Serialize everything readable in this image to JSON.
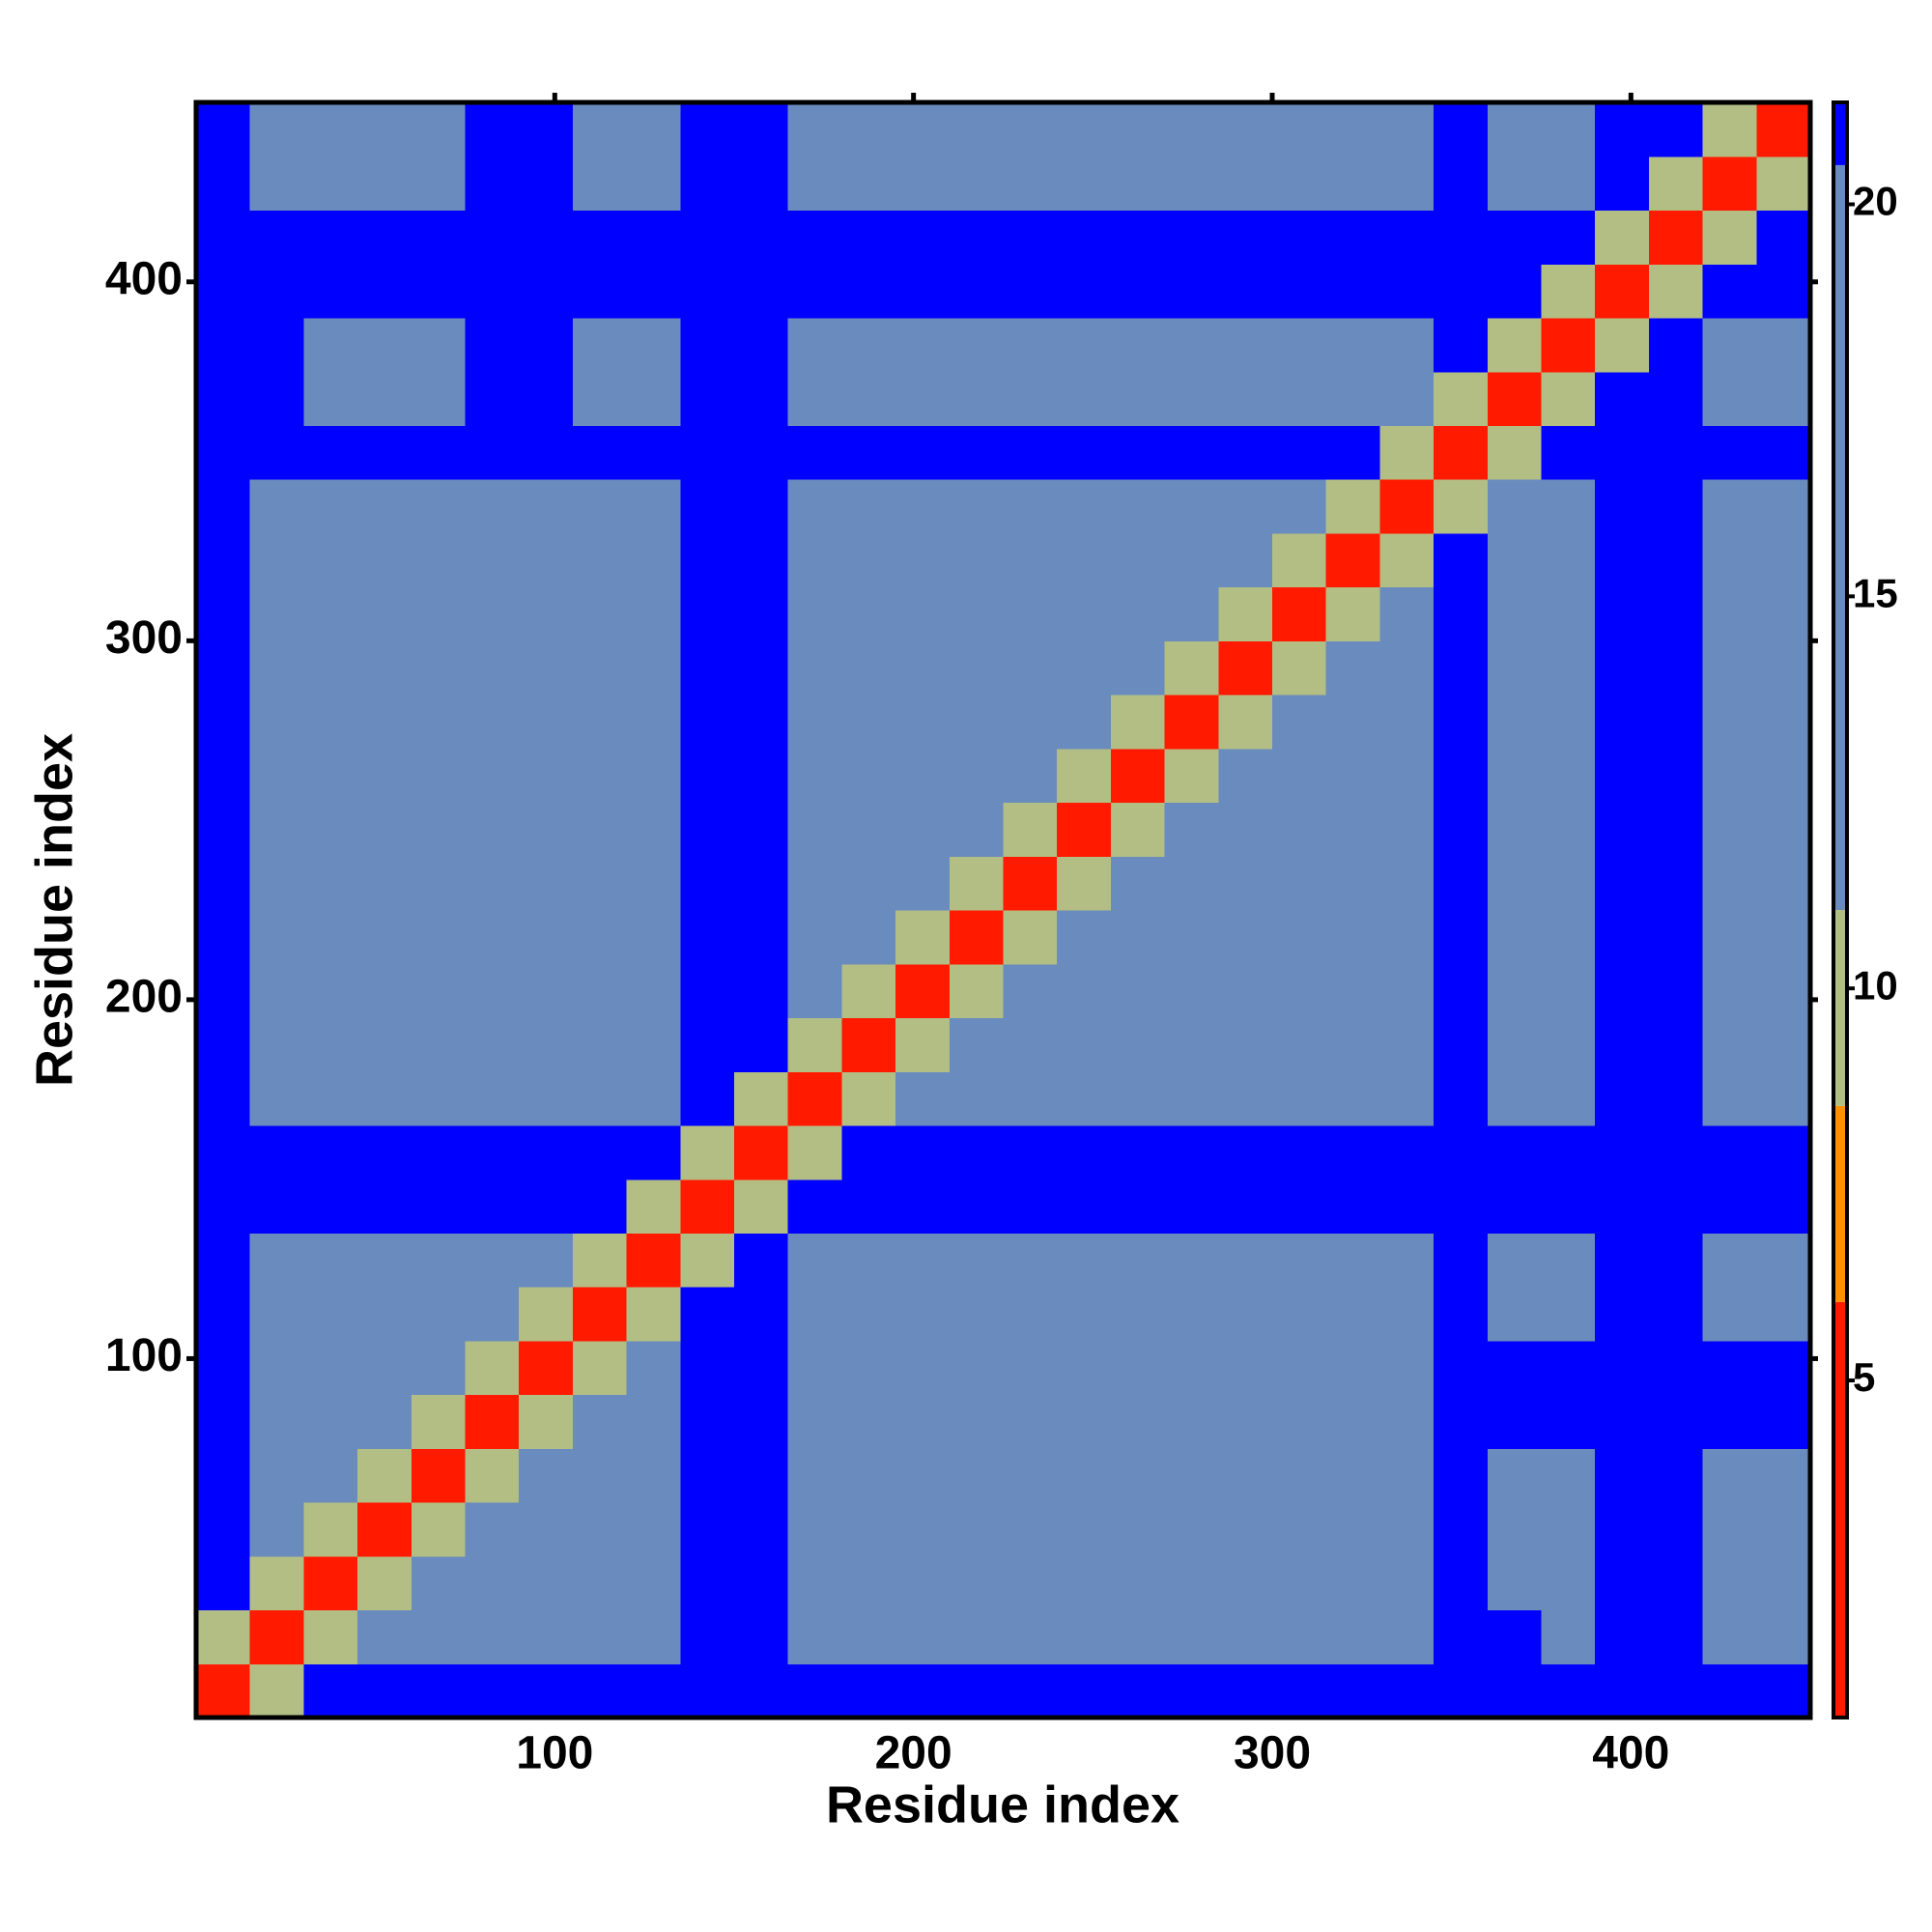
{
  "chart_data": {
    "type": "heatmap",
    "x_label": "Residue index",
    "y_label": "Residue index",
    "xlim": [
      0,
      450
    ],
    "ylim": [
      0,
      450
    ],
    "xticks": [
      100,
      200,
      300,
      400
    ],
    "yticks": [
      100,
      200,
      300,
      400
    ],
    "zlim": [
      0.7,
      21.3
    ],
    "colorbar_ticks": [
      5,
      10,
      15,
      20
    ],
    "color_steps": [
      {
        "max": 6,
        "color": "#ff1a00"
      },
      {
        "max": 8.5,
        "color": "#ff9000"
      },
      {
        "max": 11,
        "color": "#b3be84"
      },
      {
        "max": 20.5,
        "color": "#6a8bbd"
      },
      {
        "max": 21.3,
        "color": "#0000ff"
      }
    ],
    "z": [
      [
        3,
        10,
        22,
        22,
        22,
        22,
        22,
        22,
        22,
        22,
        22,
        22,
        22,
        22,
        22,
        22,
        22,
        22,
        22,
        22,
        22,
        22,
        22,
        22,
        22,
        22,
        22,
        22,
        22,
        22
      ],
      [
        10,
        3,
        10,
        14,
        14,
        14,
        14,
        14,
        14,
        22,
        22,
        17,
        17,
        17,
        17,
        17,
        17,
        17,
        17,
        17,
        17,
        17,
        17,
        22,
        22,
        17,
        22,
        22,
        17,
        17
      ],
      [
        22,
        10,
        3,
        10,
        14,
        14,
        14,
        14,
        14,
        22,
        22,
        17,
        17,
        17,
        17,
        17,
        17,
        17,
        17,
        17,
        17,
        17,
        17,
        22,
        17,
        17,
        22,
        22,
        17,
        17
      ],
      [
        22,
        14,
        10,
        3,
        10,
        14,
        14,
        14,
        14,
        22,
        22,
        17,
        17,
        17,
        17,
        17,
        17,
        17,
        17,
        17,
        17,
        17,
        17,
        22,
        17,
        17,
        22,
        22,
        17,
        17
      ],
      [
        22,
        14,
        14,
        10,
        3,
        10,
        14,
        14,
        14,
        22,
        22,
        17,
        17,
        17,
        17,
        17,
        17,
        17,
        17,
        17,
        17,
        17,
        17,
        22,
        17,
        17,
        22,
        22,
        17,
        17
      ],
      [
        22,
        14,
        14,
        14,
        10,
        3,
        10,
        14,
        14,
        22,
        22,
        17,
        17,
        17,
        17,
        17,
        17,
        17,
        17,
        17,
        17,
        17,
        17,
        22,
        22,
        22,
        22,
        22,
        22,
        22
      ],
      [
        22,
        14,
        14,
        14,
        14,
        10,
        3,
        10,
        14,
        22,
        22,
        17,
        17,
        17,
        17,
        17,
        17,
        17,
        17,
        17,
        17,
        17,
        17,
        22,
        22,
        22,
        22,
        22,
        22,
        22
      ],
      [
        22,
        14,
        14,
        14,
        14,
        14,
        10,
        3,
        10,
        22,
        22,
        17,
        17,
        17,
        17,
        17,
        17,
        17,
        17,
        17,
        17,
        17,
        17,
        22,
        17,
        17,
        22,
        22,
        17,
        17
      ],
      [
        22,
        14,
        14,
        14,
        14,
        14,
        14,
        10,
        3,
        10,
        22,
        17,
        17,
        17,
        17,
        17,
        17,
        17,
        17,
        17,
        17,
        17,
        17,
        22,
        17,
        17,
        22,
        22,
        17,
        17
      ],
      [
        22,
        22,
        22,
        22,
        22,
        22,
        22,
        22,
        10,
        3,
        10,
        22,
        22,
        22,
        22,
        22,
        22,
        22,
        22,
        22,
        22,
        22,
        22,
        22,
        22,
        22,
        22,
        22,
        22,
        22
      ],
      [
        22,
        22,
        22,
        22,
        22,
        22,
        22,
        22,
        22,
        10,
        3,
        10,
        22,
        22,
        22,
        22,
        22,
        22,
        22,
        22,
        22,
        22,
        22,
        22,
        22,
        22,
        22,
        22,
        22,
        22
      ],
      [
        22,
        17,
        17,
        17,
        17,
        17,
        17,
        17,
        17,
        22,
        10,
        3,
        10,
        14,
        14,
        14,
        14,
        14,
        14,
        14,
        14,
        14,
        14,
        22,
        17,
        17,
        22,
        22,
        17,
        17
      ],
      [
        22,
        17,
        17,
        17,
        17,
        17,
        17,
        17,
        17,
        22,
        22,
        10,
        3,
        10,
        14,
        14,
        14,
        14,
        14,
        14,
        14,
        14,
        14,
        22,
        17,
        17,
        22,
        22,
        17,
        17
      ],
      [
        22,
        17,
        17,
        17,
        17,
        17,
        17,
        17,
        17,
        22,
        22,
        14,
        10,
        3,
        10,
        14,
        14,
        14,
        14,
        14,
        14,
        14,
        14,
        22,
        17,
        17,
        22,
        22,
        17,
        17
      ],
      [
        22,
        17,
        17,
        17,
        17,
        17,
        17,
        17,
        17,
        22,
        22,
        14,
        14,
        10,
        3,
        10,
        14,
        14,
        14,
        14,
        14,
        14,
        14,
        22,
        17,
        17,
        22,
        22,
        17,
        17
      ],
      [
        22,
        17,
        17,
        17,
        17,
        17,
        17,
        17,
        17,
        22,
        22,
        14,
        14,
        14,
        10,
        3,
        10,
        14,
        14,
        14,
        14,
        14,
        14,
        22,
        17,
        17,
        22,
        22,
        17,
        17
      ],
      [
        22,
        17,
        17,
        17,
        17,
        17,
        17,
        17,
        17,
        22,
        22,
        14,
        14,
        14,
        14,
        10,
        3,
        10,
        14,
        14,
        14,
        14,
        14,
        22,
        17,
        17,
        22,
        22,
        17,
        17
      ],
      [
        22,
        17,
        17,
        17,
        17,
        17,
        17,
        17,
        17,
        22,
        22,
        14,
        14,
        14,
        14,
        14,
        10,
        3,
        10,
        14,
        14,
        14,
        14,
        22,
        17,
        17,
        22,
        22,
        17,
        17
      ],
      [
        22,
        17,
        17,
        17,
        17,
        17,
        17,
        17,
        17,
        22,
        22,
        14,
        14,
        14,
        14,
        14,
        14,
        10,
        3,
        10,
        14,
        14,
        14,
        22,
        17,
        17,
        22,
        22,
        17,
        17
      ],
      [
        22,
        17,
        17,
        17,
        17,
        17,
        17,
        17,
        17,
        22,
        22,
        14,
        14,
        14,
        14,
        14,
        14,
        14,
        10,
        3,
        10,
        14,
        14,
        22,
        17,
        17,
        22,
        22,
        17,
        17
      ],
      [
        22,
        17,
        17,
        17,
        17,
        17,
        17,
        17,
        17,
        22,
        22,
        14,
        14,
        14,
        14,
        14,
        14,
        14,
        14,
        10,
        3,
        10,
        14,
        22,
        17,
        17,
        22,
        22,
        17,
        17
      ],
      [
        22,
        17,
        17,
        17,
        17,
        17,
        17,
        17,
        17,
        22,
        22,
        14,
        14,
        14,
        14,
        14,
        14,
        14,
        14,
        14,
        10,
        3,
        10,
        22,
        17,
        17,
        22,
        22,
        17,
        17
      ],
      [
        22,
        17,
        17,
        17,
        17,
        17,
        17,
        17,
        17,
        22,
        22,
        14,
        14,
        14,
        14,
        14,
        14,
        14,
        14,
        14,
        14,
        10,
        3,
        10,
        17,
        17,
        22,
        22,
        17,
        17
      ],
      [
        22,
        22,
        22,
        22,
        22,
        22,
        22,
        22,
        22,
        22,
        22,
        22,
        22,
        22,
        22,
        22,
        22,
        22,
        22,
        22,
        22,
        22,
        10,
        3,
        10,
        22,
        22,
        22,
        22,
        22
      ],
      [
        22,
        22,
        17,
        17,
        17,
        22,
        22,
        17,
        17,
        22,
        22,
        17,
        17,
        17,
        17,
        17,
        17,
        17,
        17,
        17,
        17,
        17,
        17,
        10,
        3,
        10,
        22,
        22,
        17,
        17
      ],
      [
        22,
        22,
        17,
        17,
        17,
        22,
        22,
        17,
        17,
        22,
        22,
        17,
        17,
        17,
        17,
        17,
        17,
        17,
        17,
        17,
        17,
        17,
        17,
        22,
        10,
        3,
        10,
        22,
        17,
        17
      ],
      [
        22,
        22,
        22,
        22,
        22,
        22,
        22,
        22,
        22,
        22,
        22,
        22,
        22,
        22,
        22,
        22,
        22,
        22,
        22,
        22,
        22,
        22,
        22,
        22,
        22,
        10,
        3,
        10,
        22,
        22
      ],
      [
        22,
        22,
        22,
        22,
        22,
        22,
        22,
        22,
        22,
        22,
        22,
        22,
        22,
        22,
        22,
        22,
        22,
        22,
        22,
        22,
        22,
        22,
        22,
        22,
        22,
        22,
        10,
        3,
        10,
        22
      ],
      [
        22,
        17,
        17,
        17,
        17,
        22,
        22,
        17,
        17,
        22,
        22,
        17,
        17,
        17,
        17,
        17,
        17,
        17,
        17,
        17,
        17,
        17,
        17,
        22,
        17,
        17,
        22,
        10,
        3,
        10
      ],
      [
        22,
        17,
        17,
        17,
        17,
        22,
        22,
        17,
        17,
        22,
        22,
        17,
        17,
        17,
        17,
        17,
        17,
        17,
        17,
        17,
        17,
        17,
        17,
        22,
        17,
        17,
        22,
        22,
        10,
        3
      ]
    ]
  }
}
